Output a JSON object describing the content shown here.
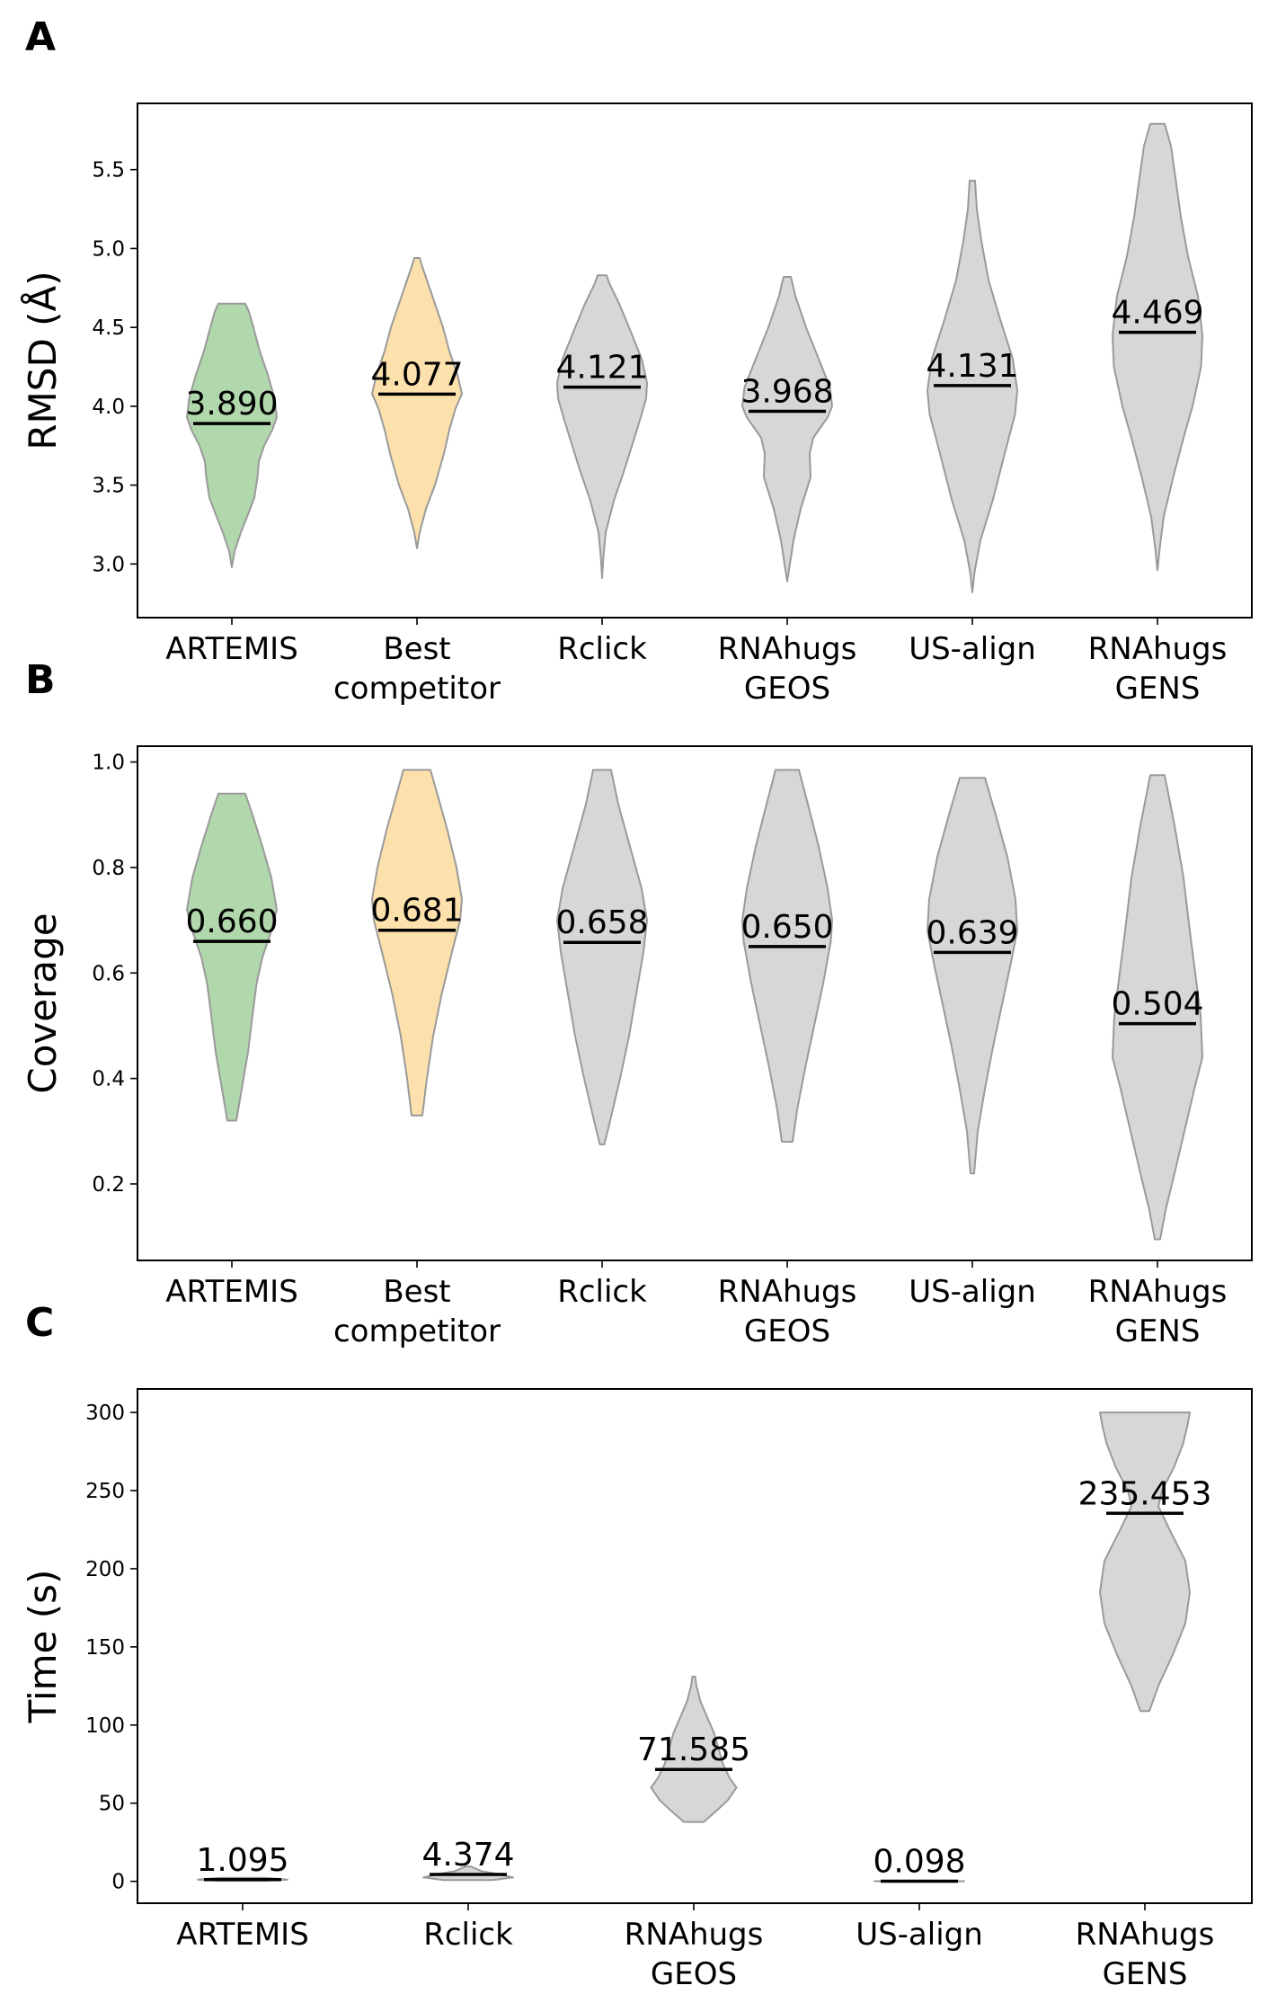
{
  "colors": {
    "artemis": "#b1d7ac",
    "best_competitor": "#fde1ad",
    "others": "#d7d7d7",
    "violin_edge": "#9a9a9a",
    "median": "#000000"
  },
  "chart_data": [
    {
      "type": "violin",
      "panel_label": "A",
      "ylabel": "RMSD (Å)",
      "ylim": [
        2.66,
        5.92
      ],
      "yticks": [
        "3.0",
        "3.5",
        "4.0",
        "4.5",
        "5.0",
        "5.5"
      ],
      "ytick_values": [
        3.0,
        3.5,
        4.0,
        4.5,
        5.0,
        5.5
      ],
      "categories": [
        "ARTEMIS",
        "Best\ncompetitor",
        "Rclick",
        "RNAhugs\nGEOS",
        "US-align",
        "RNAhugs\nGENS"
      ],
      "series": [
        {
          "medianLabel": "3.890",
          "median": 3.89,
          "min": 2.98,
          "max": 4.65,
          "fill": "artemis",
          "profile": [
            [
              2.98,
              0.0
            ],
            [
              3.08,
              0.06
            ],
            [
              3.2,
              0.2
            ],
            [
              3.3,
              0.34
            ],
            [
              3.42,
              0.5
            ],
            [
              3.55,
              0.57
            ],
            [
              3.65,
              0.6
            ],
            [
              3.75,
              0.72
            ],
            [
              3.85,
              0.9
            ],
            [
              3.93,
              1.0
            ],
            [
              4.05,
              0.95
            ],
            [
              4.2,
              0.8
            ],
            [
              4.35,
              0.62
            ],
            [
              4.5,
              0.48
            ],
            [
              4.6,
              0.38
            ],
            [
              4.65,
              0.3
            ]
          ]
        },
        {
          "medianLabel": "4.077",
          "median": 4.077,
          "min": 3.1,
          "max": 4.94,
          "fill": "best_competitor",
          "profile": [
            [
              3.1,
              0.0
            ],
            [
              3.2,
              0.06
            ],
            [
              3.35,
              0.2
            ],
            [
              3.5,
              0.4
            ],
            [
              3.7,
              0.6
            ],
            [
              3.85,
              0.72
            ],
            [
              3.98,
              0.85
            ],
            [
              4.08,
              1.0
            ],
            [
              4.2,
              0.9
            ],
            [
              4.35,
              0.72
            ],
            [
              4.5,
              0.58
            ],
            [
              4.65,
              0.4
            ],
            [
              4.8,
              0.22
            ],
            [
              4.9,
              0.1
            ],
            [
              4.94,
              0.06
            ]
          ]
        },
        {
          "medianLabel": "4.121",
          "median": 4.121,
          "min": 2.91,
          "max": 4.83,
          "fill": "others",
          "profile": [
            [
              2.91,
              0.0
            ],
            [
              3.05,
              0.03
            ],
            [
              3.2,
              0.08
            ],
            [
              3.4,
              0.26
            ],
            [
              3.6,
              0.5
            ],
            [
              3.8,
              0.72
            ],
            [
              3.95,
              0.88
            ],
            [
              4.05,
              0.98
            ],
            [
              4.15,
              1.0
            ],
            [
              4.3,
              0.88
            ],
            [
              4.5,
              0.6
            ],
            [
              4.65,
              0.38
            ],
            [
              4.78,
              0.16
            ],
            [
              4.83,
              0.1
            ]
          ]
        },
        {
          "medianLabel": "3.968",
          "median": 3.968,
          "min": 2.89,
          "max": 4.82,
          "fill": "others",
          "profile": [
            [
              2.89,
              0.0
            ],
            [
              3.0,
              0.06
            ],
            [
              3.15,
              0.14
            ],
            [
              3.35,
              0.3
            ],
            [
              3.55,
              0.52
            ],
            [
              3.7,
              0.5
            ],
            [
              3.8,
              0.58
            ],
            [
              3.93,
              0.9
            ],
            [
              4.0,
              1.0
            ],
            [
              4.12,
              0.95
            ],
            [
              4.3,
              0.7
            ],
            [
              4.5,
              0.42
            ],
            [
              4.7,
              0.18
            ],
            [
              4.8,
              0.1
            ],
            [
              4.82,
              0.08
            ]
          ]
        },
        {
          "medianLabel": "4.131",
          "median": 4.131,
          "min": 2.82,
          "max": 5.43,
          "fill": "others",
          "profile": [
            [
              2.82,
              0.0
            ],
            [
              2.95,
              0.05
            ],
            [
              3.15,
              0.18
            ],
            [
              3.4,
              0.45
            ],
            [
              3.7,
              0.72
            ],
            [
              3.95,
              0.95
            ],
            [
              4.1,
              1.0
            ],
            [
              4.3,
              0.9
            ],
            [
              4.55,
              0.62
            ],
            [
              4.8,
              0.36
            ],
            [
              5.05,
              0.2
            ],
            [
              5.25,
              0.1
            ],
            [
              5.43,
              0.06
            ]
          ]
        },
        {
          "medianLabel": "4.469",
          "median": 4.469,
          "min": 2.96,
          "max": 5.79,
          "fill": "others",
          "profile": [
            [
              2.96,
              0.0
            ],
            [
              3.1,
              0.05
            ],
            [
              3.3,
              0.14
            ],
            [
              3.55,
              0.35
            ],
            [
              3.8,
              0.58
            ],
            [
              4.0,
              0.78
            ],
            [
              4.25,
              0.97
            ],
            [
              4.45,
              1.0
            ],
            [
              4.7,
              0.9
            ],
            [
              4.95,
              0.68
            ],
            [
              5.2,
              0.52
            ],
            [
              5.45,
              0.4
            ],
            [
              5.65,
              0.3
            ],
            [
              5.75,
              0.2
            ],
            [
              5.79,
              0.16
            ]
          ]
        }
      ]
    },
    {
      "type": "violin",
      "panel_label": "B",
      "ylabel": "Coverage",
      "ylim": [
        0.055,
        1.03
      ],
      "yticks": [
        "0.2",
        "0.4",
        "0.6",
        "0.8",
        "1.0"
      ],
      "ytick_values": [
        0.2,
        0.4,
        0.6,
        0.8,
        1.0
      ],
      "categories": [
        "ARTEMIS",
        "Best\ncompetitor",
        "Rclick",
        "RNAhugs\nGEOS",
        "US-align",
        "RNAhugs\nGENS"
      ],
      "series": [
        {
          "medianLabel": "0.660",
          "median": 0.66,
          "min": 0.32,
          "max": 0.94,
          "fill": "artemis",
          "profile": [
            [
              0.32,
              0.1
            ],
            [
              0.38,
              0.22
            ],
            [
              0.45,
              0.36
            ],
            [
              0.52,
              0.46
            ],
            [
              0.58,
              0.55
            ],
            [
              0.63,
              0.68
            ],
            [
              0.68,
              0.88
            ],
            [
              0.72,
              1.0
            ],
            [
              0.78,
              0.88
            ],
            [
              0.84,
              0.68
            ],
            [
              0.9,
              0.46
            ],
            [
              0.94,
              0.3
            ]
          ]
        },
        {
          "medianLabel": "0.681",
          "median": 0.681,
          "min": 0.33,
          "max": 0.985,
          "fill": "best_competitor",
          "profile": [
            [
              0.33,
              0.12
            ],
            [
              0.4,
              0.22
            ],
            [
              0.48,
              0.36
            ],
            [
              0.56,
              0.55
            ],
            [
              0.64,
              0.78
            ],
            [
              0.7,
              0.96
            ],
            [
              0.74,
              1.0
            ],
            [
              0.8,
              0.88
            ],
            [
              0.87,
              0.68
            ],
            [
              0.94,
              0.45
            ],
            [
              0.985,
              0.3
            ]
          ]
        },
        {
          "medianLabel": "0.658",
          "median": 0.658,
          "min": 0.275,
          "max": 0.985,
          "fill": "others",
          "profile": [
            [
              0.275,
              0.05
            ],
            [
              0.32,
              0.18
            ],
            [
              0.4,
              0.4
            ],
            [
              0.48,
              0.6
            ],
            [
              0.56,
              0.76
            ],
            [
              0.64,
              0.92
            ],
            [
              0.7,
              1.0
            ],
            [
              0.76,
              0.88
            ],
            [
              0.84,
              0.62
            ],
            [
              0.92,
              0.36
            ],
            [
              0.985,
              0.2
            ]
          ]
        },
        {
          "medianLabel": "0.650",
          "median": 0.65,
          "min": 0.28,
          "max": 0.985,
          "fill": "others",
          "profile": [
            [
              0.28,
              0.12
            ],
            [
              0.34,
              0.22
            ],
            [
              0.42,
              0.4
            ],
            [
              0.5,
              0.6
            ],
            [
              0.58,
              0.8
            ],
            [
              0.66,
              0.97
            ],
            [
              0.7,
              1.0
            ],
            [
              0.76,
              0.9
            ],
            [
              0.84,
              0.7
            ],
            [
              0.92,
              0.46
            ],
            [
              0.985,
              0.26
            ]
          ]
        },
        {
          "medianLabel": "0.639",
          "median": 0.639,
          "min": 0.22,
          "max": 0.97,
          "fill": "others",
          "profile": [
            [
              0.22,
              0.04
            ],
            [
              0.3,
              0.12
            ],
            [
              0.38,
              0.28
            ],
            [
              0.46,
              0.46
            ],
            [
              0.54,
              0.66
            ],
            [
              0.62,
              0.86
            ],
            [
              0.68,
              1.0
            ],
            [
              0.74,
              0.96
            ],
            [
              0.82,
              0.78
            ],
            [
              0.9,
              0.52
            ],
            [
              0.97,
              0.28
            ]
          ]
        },
        {
          "medianLabel": "0.504",
          "median": 0.504,
          "min": 0.095,
          "max": 0.975,
          "fill": "others",
          "profile": [
            [
              0.095,
              0.06
            ],
            [
              0.15,
              0.18
            ],
            [
              0.22,
              0.38
            ],
            [
              0.3,
              0.6
            ],
            [
              0.38,
              0.82
            ],
            [
              0.44,
              1.0
            ],
            [
              0.52,
              0.96
            ],
            [
              0.6,
              0.84
            ],
            [
              0.68,
              0.72
            ],
            [
              0.78,
              0.58
            ],
            [
              0.88,
              0.38
            ],
            [
              0.975,
              0.16
            ]
          ]
        }
      ]
    },
    {
      "type": "violin",
      "panel_label": "C",
      "ylabel": "Time (s)",
      "ylim": [
        -14,
        315
      ],
      "yticks": [
        "0",
        "50",
        "100",
        "150",
        "200",
        "250",
        "300"
      ],
      "ytick_values": [
        0,
        50,
        100,
        150,
        200,
        250,
        300
      ],
      "categories": [
        "ARTEMIS",
        "Rclick",
        "RNAhugs\nGEOS",
        "US-align",
        "RNAhugs\nGENS"
      ],
      "series": [
        {
          "medianLabel": "1.095",
          "median": 1.095,
          "min": 0.4,
          "max": 2.2,
          "fill": "others",
          "profile": [
            [
              0.4,
              0.5
            ],
            [
              1.1,
              1.0
            ],
            [
              2.2,
              0.5
            ]
          ]
        },
        {
          "medianLabel": "4.374",
          "median": 4.374,
          "min": 0.8,
          "max": 9.5,
          "fill": "others",
          "profile": [
            [
              0.8,
              0.55
            ],
            [
              2.5,
              1.0
            ],
            [
              4.5,
              0.7
            ],
            [
              6.5,
              0.3
            ],
            [
              9.5,
              0.05
            ]
          ]
        },
        {
          "medianLabel": "71.585",
          "median": 71.585,
          "min": 38,
          "max": 131,
          "fill": "others",
          "profile": [
            [
              38,
              0.22
            ],
            [
              45,
              0.5
            ],
            [
              52,
              0.76
            ],
            [
              60,
              0.95
            ],
            [
              66,
              0.8
            ],
            [
              75,
              0.65
            ],
            [
              85,
              0.55
            ],
            [
              95,
              0.45
            ],
            [
              105,
              0.3
            ],
            [
              115,
              0.15
            ],
            [
              125,
              0.06
            ],
            [
              131,
              0.03
            ]
          ]
        },
        {
          "medianLabel": "0.098",
          "median": 0.098,
          "min": -0.2,
          "max": 0.4,
          "fill": "others",
          "profile": [
            [
              -0.2,
              0.5
            ],
            [
              0.1,
              1.0
            ],
            [
              0.4,
              0.5
            ]
          ]
        },
        {
          "medianLabel": "235.453",
          "median": 235.453,
          "min": 109,
          "max": 300,
          "fill": "others",
          "profile": [
            [
              109,
              0.1
            ],
            [
              125,
              0.3
            ],
            [
              145,
              0.62
            ],
            [
              165,
              0.9
            ],
            [
              185,
              1.0
            ],
            [
              205,
              0.9
            ],
            [
              225,
              0.55
            ],
            [
              240,
              0.3
            ],
            [
              250,
              0.38
            ],
            [
              265,
              0.65
            ],
            [
              280,
              0.85
            ],
            [
              292,
              0.95
            ],
            [
              300,
              1.0
            ]
          ]
        }
      ]
    }
  ]
}
